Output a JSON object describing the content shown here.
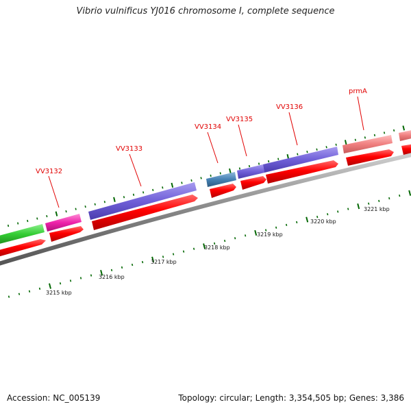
{
  "title": "Vibrio vulnificus YJ016 chromosome I, complete sequence",
  "footer": {
    "accession": "Accession: NC_005139",
    "summary": "Topology: circular; Length: 3,354,505 bp; Genes: 3,386"
  },
  "colors": {
    "cds_red": "#ff0000",
    "blue_violet": "#7060d8",
    "magenta": "#ee22aa",
    "green": "#33cc33",
    "steel_blue": "#4682b4",
    "salmon": "#f08080",
    "tick_green": "#006600",
    "backbone": "#888888",
    "label_red": "#e10000"
  },
  "gene_labels": [
    "VV3132",
    "VV3133",
    "VV3134",
    "VV3135",
    "VV3136",
    "prmA"
  ],
  "kbp_labels": [
    "3215 kbp",
    "3216 kbp",
    "3217 kbp",
    "3218 kbp",
    "3219 kbp",
    "3220 kbp",
    "3221 kbp"
  ]
}
